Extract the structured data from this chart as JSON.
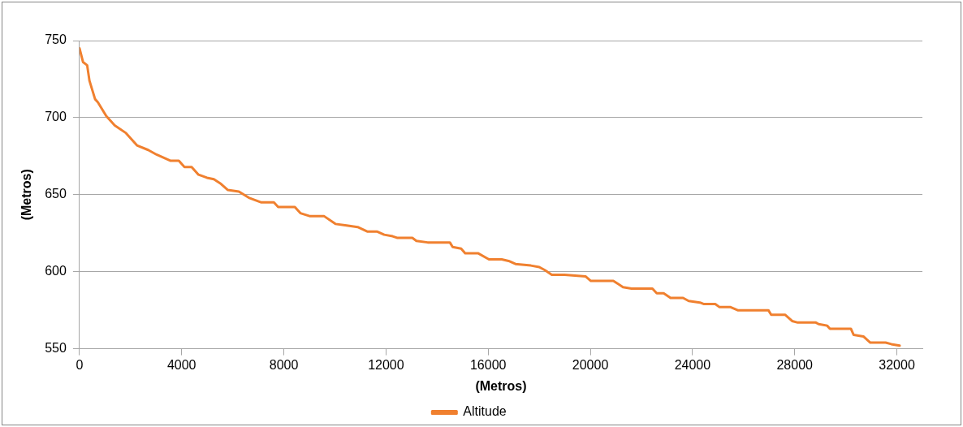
{
  "chart_data": {
    "type": "line",
    "xlabel": "(Metros)",
    "ylabel": "(Metros)",
    "x": [
      0,
      140,
      300,
      390,
      610,
      720,
      1050,
      1380,
      1820,
      2250,
      2690,
      3020,
      3570,
      3890,
      4110,
      4390,
      4660,
      4990,
      5260,
      5540,
      5810,
      6240,
      6630,
      7120,
      7610,
      7780,
      8430,
      8650,
      9030,
      9580,
      10020,
      10460,
      10890,
      11280,
      11660,
      11930,
      12260,
      12430,
      13030,
      13190,
      13630,
      14500,
      14610,
      14940,
      15100,
      15600,
      16030,
      16530,
      16800,
      17070,
      17670,
      18000,
      18220,
      18490,
      18990,
      19810,
      20020,
      20520,
      20900,
      21280,
      21610,
      22430,
      22600,
      22870,
      23140,
      23630,
      23850,
      24290,
      24450,
      24890,
      25060,
      25490,
      25770,
      26970,
      27080,
      27630,
      27900,
      28120,
      28830,
      28940,
      29270,
      29380,
      30200,
      30310,
      30690,
      30960,
      31560,
      31780,
      32110
    ],
    "series": [
      {
        "name": "Altitude",
        "color": "#f0802f",
        "values": [
          745,
          736,
          734,
          724,
          712,
          710,
          701,
          695,
          690,
          682,
          679,
          676,
          672,
          672,
          668,
          668,
          663,
          661,
          660,
          657,
          653,
          652,
          648,
          645,
          645,
          642,
          642,
          638,
          636,
          636,
          631,
          630,
          629,
          626,
          626,
          624,
          623,
          622,
          622,
          620,
          619,
          619,
          616,
          615,
          612,
          612,
          608,
          608,
          607,
          605,
          604,
          603,
          601,
          598,
          598,
          597,
          594,
          594,
          594,
          590,
          589,
          589,
          586,
          586,
          583,
          583,
          581,
          580,
          579,
          579,
          577,
          577,
          575,
          575,
          572,
          572,
          568,
          567,
          567,
          566,
          565,
          563,
          563,
          559,
          558,
          554,
          554,
          553,
          552
        ]
      }
    ],
    "xlim": [
      0,
      33000
    ],
    "xticks": [
      0,
      4000,
      8000,
      12000,
      16000,
      20000,
      24000,
      28000,
      32000
    ],
    "ylim": [
      550,
      750
    ],
    "yticks": [
      550,
      600,
      650,
      700,
      750
    ],
    "grid": "y",
    "legend": "bottom",
    "marker": "none",
    "line_style": "solid"
  }
}
